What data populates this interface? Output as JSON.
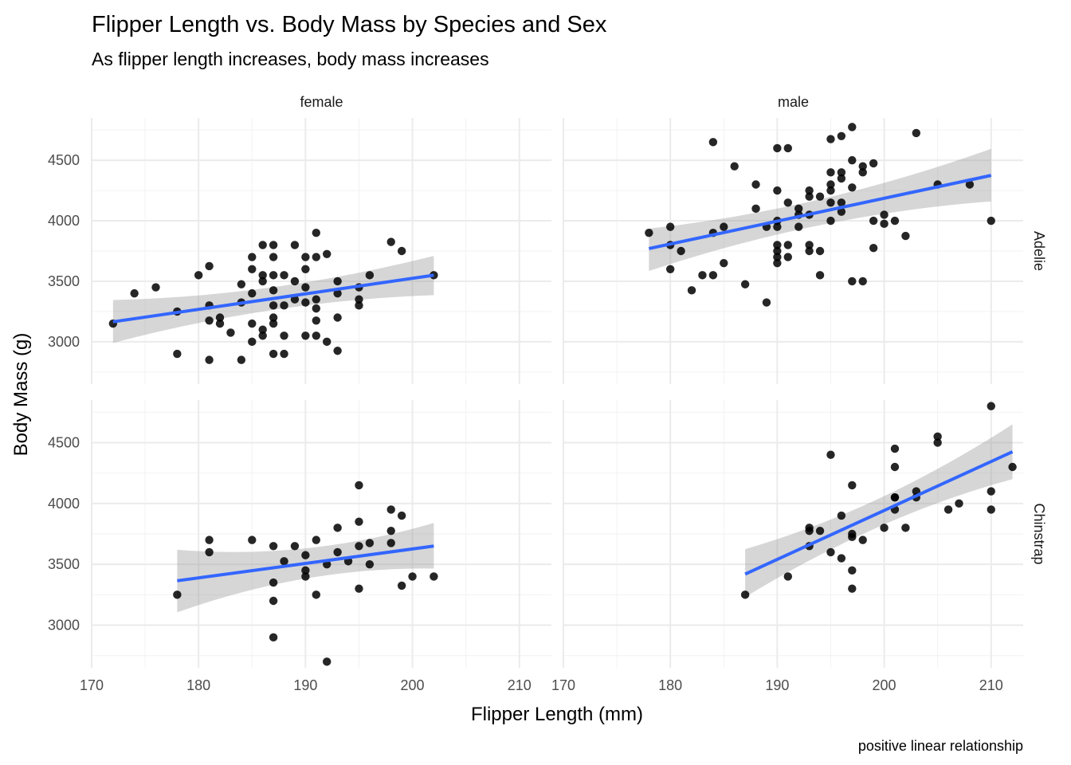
{
  "chart_data": {
    "type": "scatter",
    "title": "Flipper Length vs. Body Mass by Species and Sex",
    "subtitle": "As flipper length increases, body mass increases",
    "xlabel": "Flipper Length (mm)",
    "ylabel": "Body Mass (g)",
    "caption": "positive linear relationship",
    "xlim": [
      170,
      213
    ],
    "ylim": [
      2650,
      4850
    ],
    "x_ticks": [
      170,
      180,
      190,
      200,
      210
    ],
    "y_ticks": [
      3000,
      3500,
      4000,
      4500
    ],
    "grid": true,
    "point_color": "#000000",
    "line_color": "#3366FF",
    "band_color": "#999999",
    "facet_cols": [
      "female",
      "male"
    ],
    "facet_rows": [
      "Adelie",
      "Chinstrap"
    ],
    "panels": [
      {
        "col": "female",
        "row": "Adelie",
        "points": [
          [
            172,
            3150
          ],
          [
            174,
            3400
          ],
          [
            176,
            3450
          ],
          [
            178,
            3250
          ],
          [
            178,
            2900
          ],
          [
            180,
            3550
          ],
          [
            181,
            3625
          ],
          [
            181,
            3300
          ],
          [
            181,
            3175
          ],
          [
            181,
            2850
          ],
          [
            182,
            3200
          ],
          [
            182,
            3150
          ],
          [
            183,
            3075
          ],
          [
            184,
            3475
          ],
          [
            184,
            3325
          ],
          [
            184,
            2850
          ],
          [
            185,
            3700
          ],
          [
            185,
            3600
          ],
          [
            185,
            3400
          ],
          [
            185,
            3150
          ],
          [
            185,
            3000
          ],
          [
            186,
            3800
          ],
          [
            186,
            3550
          ],
          [
            186,
            3500
          ],
          [
            186,
            3100
          ],
          [
            186,
            3050
          ],
          [
            187,
            3800
          ],
          [
            187,
            3700
          ],
          [
            187,
            3550
          ],
          [
            187,
            3425
          ],
          [
            187,
            3300
          ],
          [
            187,
            3200
          ],
          [
            187,
            3150
          ],
          [
            187,
            2900
          ],
          [
            188,
            3550
          ],
          [
            188,
            3300
          ],
          [
            188,
            3050
          ],
          [
            188,
            2900
          ],
          [
            189,
            3800
          ],
          [
            189,
            3500
          ],
          [
            189,
            3350
          ],
          [
            190,
            3700
          ],
          [
            190,
            3600
          ],
          [
            190,
            3450
          ],
          [
            190,
            3325
          ],
          [
            190,
            3050
          ],
          [
            191,
            3900
          ],
          [
            191,
            3700
          ],
          [
            191,
            3350
          ],
          [
            191,
            3275
          ],
          [
            191,
            3175
          ],
          [
            191,
            3050
          ],
          [
            192,
            3725
          ],
          [
            192,
            3000
          ],
          [
            193,
            3500
          ],
          [
            193,
            3400
          ],
          [
            193,
            3200
          ],
          [
            193,
            2925
          ],
          [
            195,
            3450
          ],
          [
            195,
            3350
          ],
          [
            195,
            3300
          ],
          [
            196,
            3550
          ],
          [
            198,
            3825
          ],
          [
            199,
            3750
          ],
          [
            202,
            3550
          ]
        ],
        "fit": {
          "x": [
            172,
            202
          ],
          "y": [
            3165,
            3550
          ],
          "lower": [
            2990,
            3385
          ],
          "upper": [
            3345,
            3710
          ]
        }
      },
      {
        "col": "male",
        "row": "Adelie",
        "points": [
          [
            178,
            3900
          ],
          [
            180,
            3950
          ],
          [
            180,
            3800
          ],
          [
            180,
            3600
          ],
          [
            181,
            3750
          ],
          [
            182,
            3425
          ],
          [
            183,
            3550
          ],
          [
            184,
            4650
          ],
          [
            184,
            3900
          ],
          [
            184,
            3550
          ],
          [
            185,
            3950
          ],
          [
            185,
            3650
          ],
          [
            186,
            4450
          ],
          [
            187,
            3475
          ],
          [
            188,
            4300
          ],
          [
            188,
            4100
          ],
          [
            189,
            3950
          ],
          [
            189,
            3325
          ],
          [
            190,
            4600
          ],
          [
            190,
            4250
          ],
          [
            190,
            4000
          ],
          [
            190,
            3950
          ],
          [
            190,
            3800
          ],
          [
            190,
            3750
          ],
          [
            190,
            3700
          ],
          [
            190,
            3650
          ],
          [
            191,
            4600
          ],
          [
            191,
            4150
          ],
          [
            191,
            3800
          ],
          [
            191,
            3700
          ],
          [
            192,
            4100
          ],
          [
            192,
            4050
          ],
          [
            192,
            3950
          ],
          [
            193,
            4250
          ],
          [
            193,
            4200
          ],
          [
            193,
            4050
          ],
          [
            193,
            3800
          ],
          [
            193,
            3750
          ],
          [
            194,
            4200
          ],
          [
            194,
            3750
          ],
          [
            194,
            3550
          ],
          [
            195,
            4675
          ],
          [
            195,
            4400
          ],
          [
            195,
            4300
          ],
          [
            195,
            4250
          ],
          [
            195,
            4150
          ],
          [
            195,
            4000
          ],
          [
            196,
            4700
          ],
          [
            196,
            4400
          ],
          [
            196,
            4350
          ],
          [
            196,
            4150
          ],
          [
            196,
            4075
          ],
          [
            197,
            4775
          ],
          [
            197,
            4500
          ],
          [
            197,
            4275
          ],
          [
            197,
            3500
          ],
          [
            198,
            4450
          ],
          [
            198,
            4400
          ],
          [
            198,
            3500
          ],
          [
            199,
            4475
          ],
          [
            199,
            4000
          ],
          [
            199,
            3775
          ],
          [
            200,
            4050
          ],
          [
            200,
            3975
          ],
          [
            201,
            4000
          ],
          [
            202,
            3875
          ],
          [
            203,
            4725
          ],
          [
            205,
            4300
          ],
          [
            208,
            4300
          ],
          [
            210,
            4000
          ]
        ],
        "fit": {
          "x": [
            178,
            210
          ],
          "y": [
            3770,
            4375
          ],
          "lower": [
            3585,
            4160
          ],
          "upper": [
            3935,
            4595
          ]
        }
      },
      {
        "col": "female",
        "row": "Chinstrap",
        "points": [
          [
            178,
            3250
          ],
          [
            181,
            3700
          ],
          [
            181,
            3600
          ],
          [
            185,
            3700
          ],
          [
            187,
            3650
          ],
          [
            187,
            3350
          ],
          [
            187,
            3200
          ],
          [
            187,
            2900
          ],
          [
            188,
            3525
          ],
          [
            189,
            3650
          ],
          [
            190,
            3575
          ],
          [
            190,
            3450
          ],
          [
            190,
            3400
          ],
          [
            191,
            3700
          ],
          [
            191,
            3250
          ],
          [
            192,
            3500
          ],
          [
            192,
            2700
          ],
          [
            193,
            3800
          ],
          [
            193,
            3600
          ],
          [
            194,
            3525
          ],
          [
            195,
            4150
          ],
          [
            195,
            3850
          ],
          [
            195,
            3650
          ],
          [
            195,
            3300
          ],
          [
            196,
            3675
          ],
          [
            196,
            3500
          ],
          [
            198,
            3950
          ],
          [
            198,
            3775
          ],
          [
            198,
            3675
          ],
          [
            199,
            3900
          ],
          [
            199,
            3325
          ],
          [
            200,
            3400
          ],
          [
            202,
            3400
          ]
        ],
        "fit": {
          "x": [
            178,
            202
          ],
          "y": [
            3365,
            3650
          ],
          "lower": [
            3105,
            3465
          ],
          "upper": [
            3620,
            3840
          ]
        }
      },
      {
        "col": "male",
        "row": "Chinstrap",
        "points": [
          [
            187,
            3250
          ],
          [
            191,
            3400
          ],
          [
            193,
            3800
          ],
          [
            193,
            3775
          ],
          [
            193,
            3650
          ],
          [
            194,
            3775
          ],
          [
            195,
            4400
          ],
          [
            195,
            3600
          ],
          [
            196,
            3900
          ],
          [
            196,
            3550
          ],
          [
            197,
            4150
          ],
          [
            197,
            3750
          ],
          [
            197,
            3725
          ],
          [
            197,
            3450
          ],
          [
            197,
            3300
          ],
          [
            198,
            3700
          ],
          [
            200,
            3800
          ],
          [
            201,
            4450
          ],
          [
            201,
            4300
          ],
          [
            201,
            4050
          ],
          [
            201,
            4050
          ],
          [
            201,
            3950
          ],
          [
            202,
            3800
          ],
          [
            203,
            4100
          ],
          [
            203,
            4050
          ],
          [
            205,
            4550
          ],
          [
            205,
            4500
          ],
          [
            206,
            3950
          ],
          [
            207,
            4000
          ],
          [
            210,
            4800
          ],
          [
            210,
            4100
          ],
          [
            210,
            3950
          ],
          [
            212,
            4300
          ]
        ],
        "fit": {
          "x": [
            187,
            212
          ],
          "y": [
            3420,
            4425
          ],
          "lower": [
            3230,
            4200
          ],
          "upper": [
            3625,
            4650
          ]
        }
      }
    ]
  }
}
